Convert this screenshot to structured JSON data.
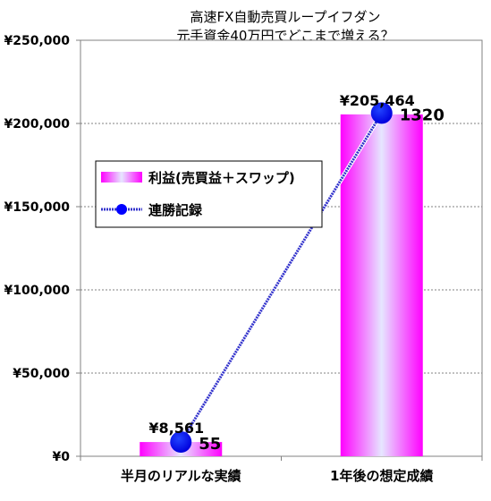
{
  "chart_data": {
    "type": "bar",
    "title_lines": [
      "高速FX自動売買ループイフダン",
      "元手資金40万円でどこまで増える？"
    ],
    "categories": [
      "半月のリアルな実績",
      "1年後の想定成績"
    ],
    "series": [
      {
        "name": "利益(売買益＋スワップ)",
        "type": "bar",
        "values": [
          8561,
          205464
        ],
        "value_labels": [
          "¥8,561",
          "¥205,464"
        ],
        "color_edge": "#ff00ff",
        "color_center": "#e6e6ff"
      },
      {
        "name": "連勝記録",
        "type": "line",
        "values": [
          55,
          1320
        ],
        "value_labels": [
          "55",
          "1320"
        ],
        "color": "#0000ff",
        "line_color": "#3333cc"
      }
    ],
    "y_axis": {
      "min": 0,
      "max": 250000,
      "step": 50000,
      "tick_labels": [
        "¥0",
        "¥50,000",
        "¥100,000",
        "¥150,000",
        "¥200,000",
        "¥250,000"
      ]
    },
    "y2_axis": {
      "min": 0,
      "max": 1600
    },
    "grid": true,
    "legend_position": "left-middle"
  }
}
